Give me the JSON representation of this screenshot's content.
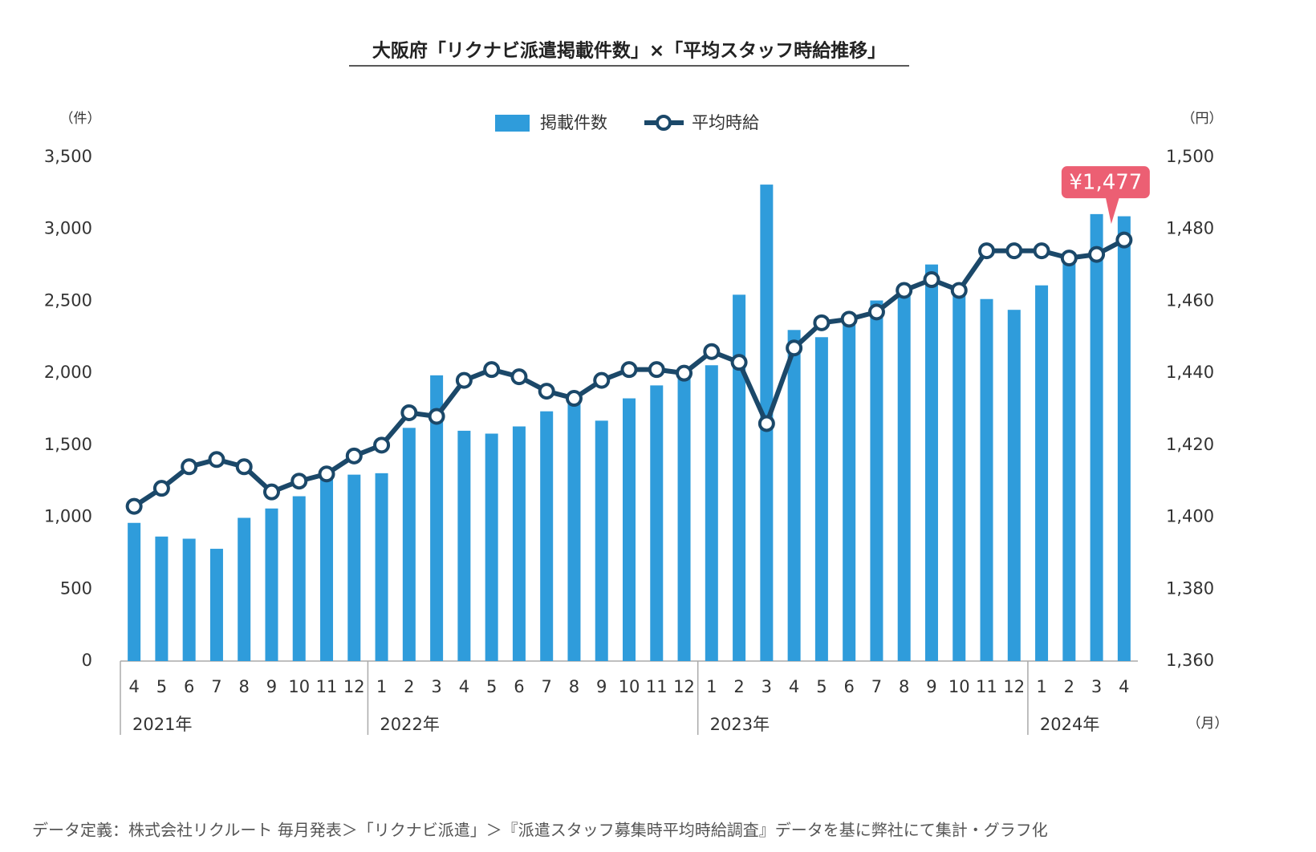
{
  "chart_data": {
    "type": "bar",
    "title": "大阪府「リクナビ派遣掲載件数」×「平均スタッフ時給推移」",
    "y_unit": "（件）",
    "y2_unit": "（円）",
    "x_unit": "（月）",
    "categories": [
      "4",
      "5",
      "6",
      "7",
      "8",
      "9",
      "10",
      "11",
      "12",
      "1",
      "2",
      "3",
      "4",
      "5",
      "6",
      "7",
      "8",
      "9",
      "10",
      "11",
      "12",
      "1",
      "2",
      "3",
      "4",
      "5",
      "6",
      "7",
      "8",
      "9",
      "10",
      "11",
      "12",
      "1",
      "2",
      "3",
      "4"
    ],
    "year_labels": [
      "2021年",
      null,
      null,
      null,
      null,
      null,
      null,
      null,
      null,
      "2022年",
      null,
      null,
      null,
      null,
      null,
      null,
      null,
      null,
      null,
      null,
      null,
      "2023年",
      null,
      null,
      null,
      null,
      null,
      null,
      null,
      null,
      null,
      null,
      null,
      "2024年",
      null,
      null,
      null
    ],
    "series": [
      {
        "name": "掲載件数",
        "type": "bar",
        "color": "#2f9cdb",
        "values": [
          960,
          865,
          850,
          780,
          995,
          1060,
          1145,
          1270,
          1295,
          1305,
          1620,
          1985,
          1600,
          1580,
          1630,
          1735,
          1810,
          1670,
          1825,
          1915,
          2000,
          2055,
          2545,
          3310,
          2300,
          2250,
          2375,
          2505,
          2595,
          2755,
          2560,
          2515,
          2440,
          2610,
          2830,
          3105,
          3090
        ]
      },
      {
        "name": "平均時給",
        "type": "line",
        "axis": "y2",
        "color": "#1b4869",
        "values": [
          1403,
          1408,
          1414,
          1416,
          1414,
          1407,
          1410,
          1412,
          1417,
          1420,
          1429,
          1428,
          1438,
          1441,
          1439,
          1435,
          1433,
          1438,
          1441,
          1441,
          1440,
          1446,
          1443,
          1426,
          1447,
          1454,
          1455,
          1457,
          1463,
          1466,
          1463,
          1474,
          1474,
          1474,
          1472,
          1473,
          1477
        ]
      }
    ],
    "ylim": [
      0,
      3500
    ],
    "yticks": [
      0,
      500,
      {
        "value": 1000,
        "label": "1,000"
      },
      {
        "value": 1500,
        "label": "1,500"
      },
      {
        "value": 2000,
        "label": "2,000"
      },
      {
        "value": 2500,
        "label": "2,500"
      },
      {
        "value": 3000,
        "label": "3,000"
      },
      {
        "value": 3500,
        "label": "3,500"
      }
    ],
    "y2lim": [
      1360,
      1500
    ],
    "y2ticks": [
      {
        "value": 1360,
        "label": "1,360"
      },
      {
        "value": 1380,
        "label": "1,380"
      },
      {
        "value": 1400,
        "label": "1,400"
      },
      {
        "value": 1420,
        "label": "1,420"
      },
      {
        "value": 1440,
        "label": "1,440"
      },
      {
        "value": 1460,
        "label": "1,460"
      },
      {
        "value": 1480,
        "label": "1,480"
      },
      {
        "value": 1500,
        "label": "1,500"
      }
    ],
    "annotation": "¥1,477",
    "annotation_color": "#ec5f73",
    "source": "データ定義：株式会社リクルート 毎月発表＞「リクナビ派遣」＞『派遣スタッフ募集時平均時給調査』データを基に弊社にて集計・グラフ化"
  }
}
